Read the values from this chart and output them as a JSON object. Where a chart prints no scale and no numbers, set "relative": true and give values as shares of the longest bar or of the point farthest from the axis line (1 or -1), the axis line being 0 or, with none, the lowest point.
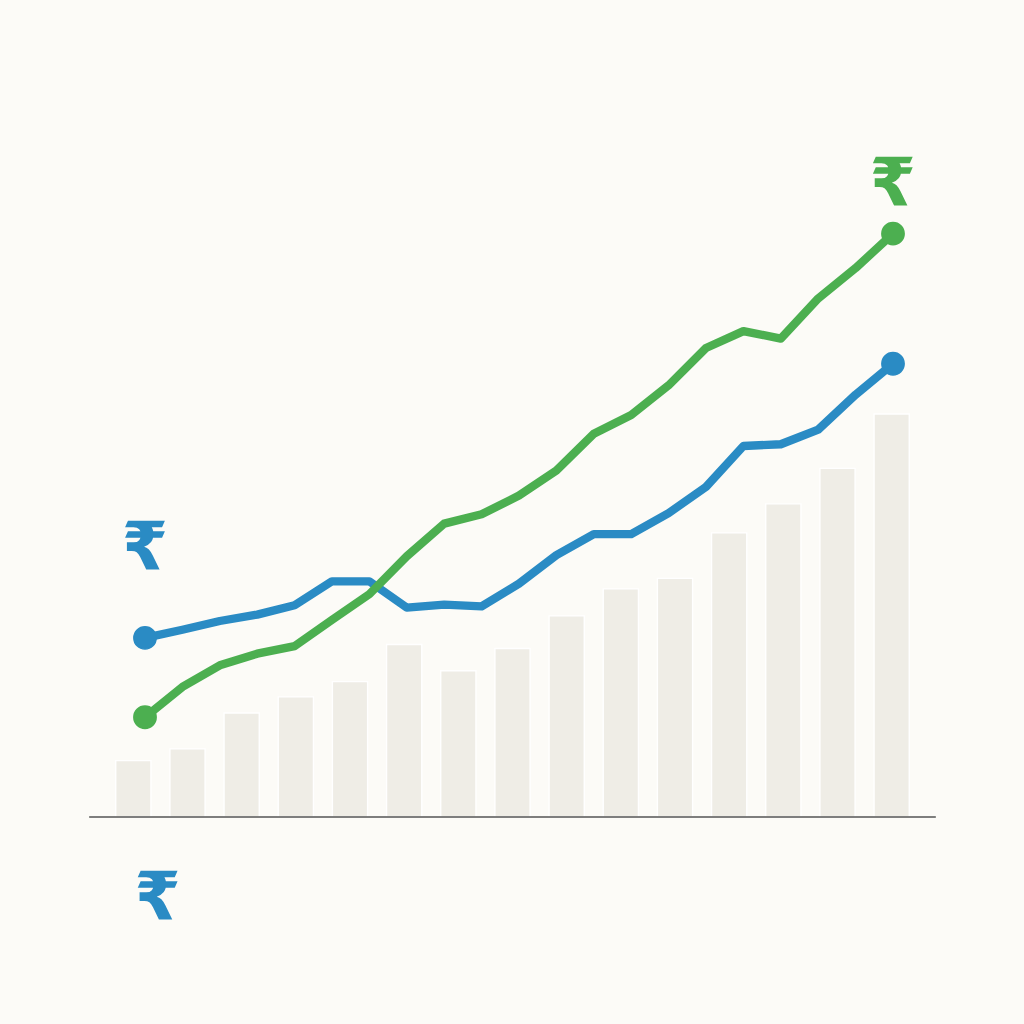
{
  "chart_data": [
    {
      "type": "bar",
      "relative": true,
      "categories": [
        null,
        null,
        null,
        null,
        null,
        null,
        null,
        null,
        null,
        null,
        null,
        null,
        null,
        null,
        null
      ],
      "values": [
        0.14,
        0.169,
        0.258,
        0.298,
        0.336,
        0.428,
        0.363,
        0.418,
        0.499,
        0.566,
        0.592,
        0.705,
        0.777,
        0.865,
        1.0
      ],
      "color": "#efede6",
      "annotations": [
        "₹",
        "₹",
        "₹"
      ]
    },
    {
      "type": "line",
      "relative": true,
      "categories": [
        null,
        null,
        null,
        null,
        null,
        null,
        null,
        null,
        null,
        null,
        null,
        null,
        null,
        null,
        null,
        null,
        null,
        null,
        null,
        null,
        null
      ],
      "series": [
        {
          "color": "#2a8bc4",
          "values": [
            0.307,
            0.321,
            0.336,
            0.347,
            0.363,
            0.404,
            0.404,
            0.359,
            0.364,
            0.361,
            0.4,
            0.449,
            0.485,
            0.485,
            0.521,
            0.566,
            0.636,
            0.639,
            0.664,
            0.724,
            0.777
          ]
        },
        {
          "color": "#4caf50",
          "values": [
            0.171,
            0.223,
            0.26,
            0.28,
            0.293,
            0.338,
            0.382,
            0.447,
            0.503,
            0.519,
            0.551,
            0.594,
            0.657,
            0.689,
            0.74,
            0.804,
            0.833,
            0.82,
            0.889,
            0.941,
            1.0
          ]
        }
      ]
    }
  ]
}
